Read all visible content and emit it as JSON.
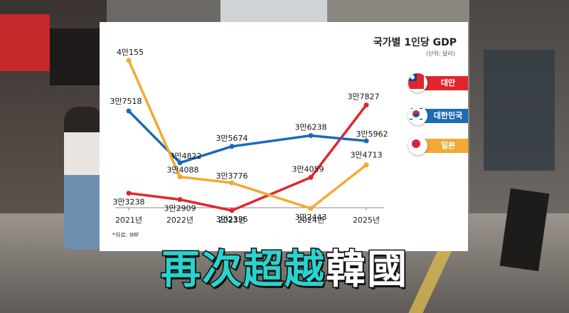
{
  "chart_data": {
    "type": "line",
    "title": "국가별 1인당 GDP",
    "unit_note": "(단위: 달러)",
    "source": "*자료: IMF",
    "categories": [
      "2021년",
      "2022년",
      "2023년",
      "2024년",
      "2025년"
    ],
    "ylim": [
      30000,
      42000
    ],
    "grid": false,
    "legend_position": "right",
    "series": [
      {
        "name": "대만",
        "color": "#e0262b",
        "flag_icon": "taiwan-flag-icon",
        "values": [
          33238,
          32909,
          32336,
          34059,
          37827
        ],
        "labels": [
          "3만3238",
          "3만2909",
          "3만2336",
          "3만4059",
          "3만7827"
        ]
      },
      {
        "name": "대한민국",
        "color": "#1b6bb5",
        "flag_icon": "south-korea-flag-icon",
        "values": [
          37518,
          34822,
          35674,
          36238,
          35962
        ],
        "labels": [
          "3만7518",
          "3만4822",
          "3만5674",
          "3만6238",
          "3만5962"
        ]
      },
      {
        "name": "일본",
        "color": "#f3a935",
        "flag_icon": "japan-flag-icon",
        "values": [
          40155,
          34088,
          33776,
          32443,
          34713
        ],
        "labels": [
          "4만155",
          "3만4088",
          "3만3776",
          "3만2443",
          "3만4713"
        ]
      }
    ]
  },
  "caption": {
    "highlight": "再次超越",
    "rest": "韓國"
  }
}
